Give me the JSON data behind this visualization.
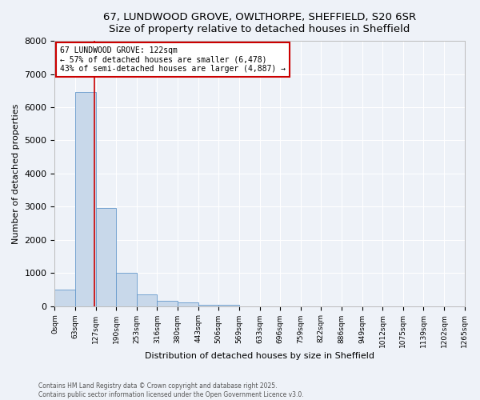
{
  "title_line1": "67, LUNDWOOD GROVE, OWLTHORPE, SHEFFIELD, S20 6SR",
  "title_line2": "Size of property relative to detached houses in Sheffield",
  "xlabel": "Distribution of detached houses by size in Sheffield",
  "ylabel": "Number of detached properties",
  "bin_edges": [
    0,
    63,
    127,
    190,
    253,
    316,
    380,
    443,
    506,
    569,
    633,
    696,
    759,
    822,
    886,
    949,
    1012,
    1075,
    1139,
    1202,
    1265
  ],
  "bar_heights": [
    500,
    6450,
    2950,
    1000,
    350,
    150,
    100,
    50,
    50,
    0,
    0,
    0,
    0,
    0,
    0,
    0,
    0,
    0,
    0,
    0
  ],
  "bar_color": "#c8d8ea",
  "bar_edge_color": "#6699cc",
  "property_line_x": 122,
  "property_line_color": "#cc0000",
  "annotation_text": "67 LUNDWOOD GROVE: 122sqm\n← 57% of detached houses are smaller (6,478)\n43% of semi-detached houses are larger (4,887) →",
  "annotation_box_color": "#ffffff",
  "annotation_box_edge_color": "#cc0000",
  "ylim": [
    0,
    8000
  ],
  "yticks": [
    0,
    1000,
    2000,
    3000,
    4000,
    5000,
    6000,
    7000,
    8000
  ],
  "tick_labels": [
    "0sqm",
    "63sqm",
    "127sqm",
    "190sqm",
    "253sqm",
    "316sqm",
    "380sqm",
    "443sqm",
    "506sqm",
    "569sqm",
    "633sqm",
    "696sqm",
    "759sqm",
    "822sqm",
    "886sqm",
    "949sqm",
    "1012sqm",
    "1075sqm",
    "1139sqm",
    "1202sqm",
    "1265sqm"
  ],
  "background_color": "#eef2f8",
  "grid_color": "#ffffff",
  "footer_text": "Contains HM Land Registry data © Crown copyright and database right 2025.\nContains public sector information licensed under the Open Government Licence v3.0.",
  "annotation_fontsize": 7.0,
  "title_fontsize": 9.5,
  "axis_label_fontsize": 8.0,
  "tick_fontsize": 6.5,
  "ytick_fontsize": 8.0
}
